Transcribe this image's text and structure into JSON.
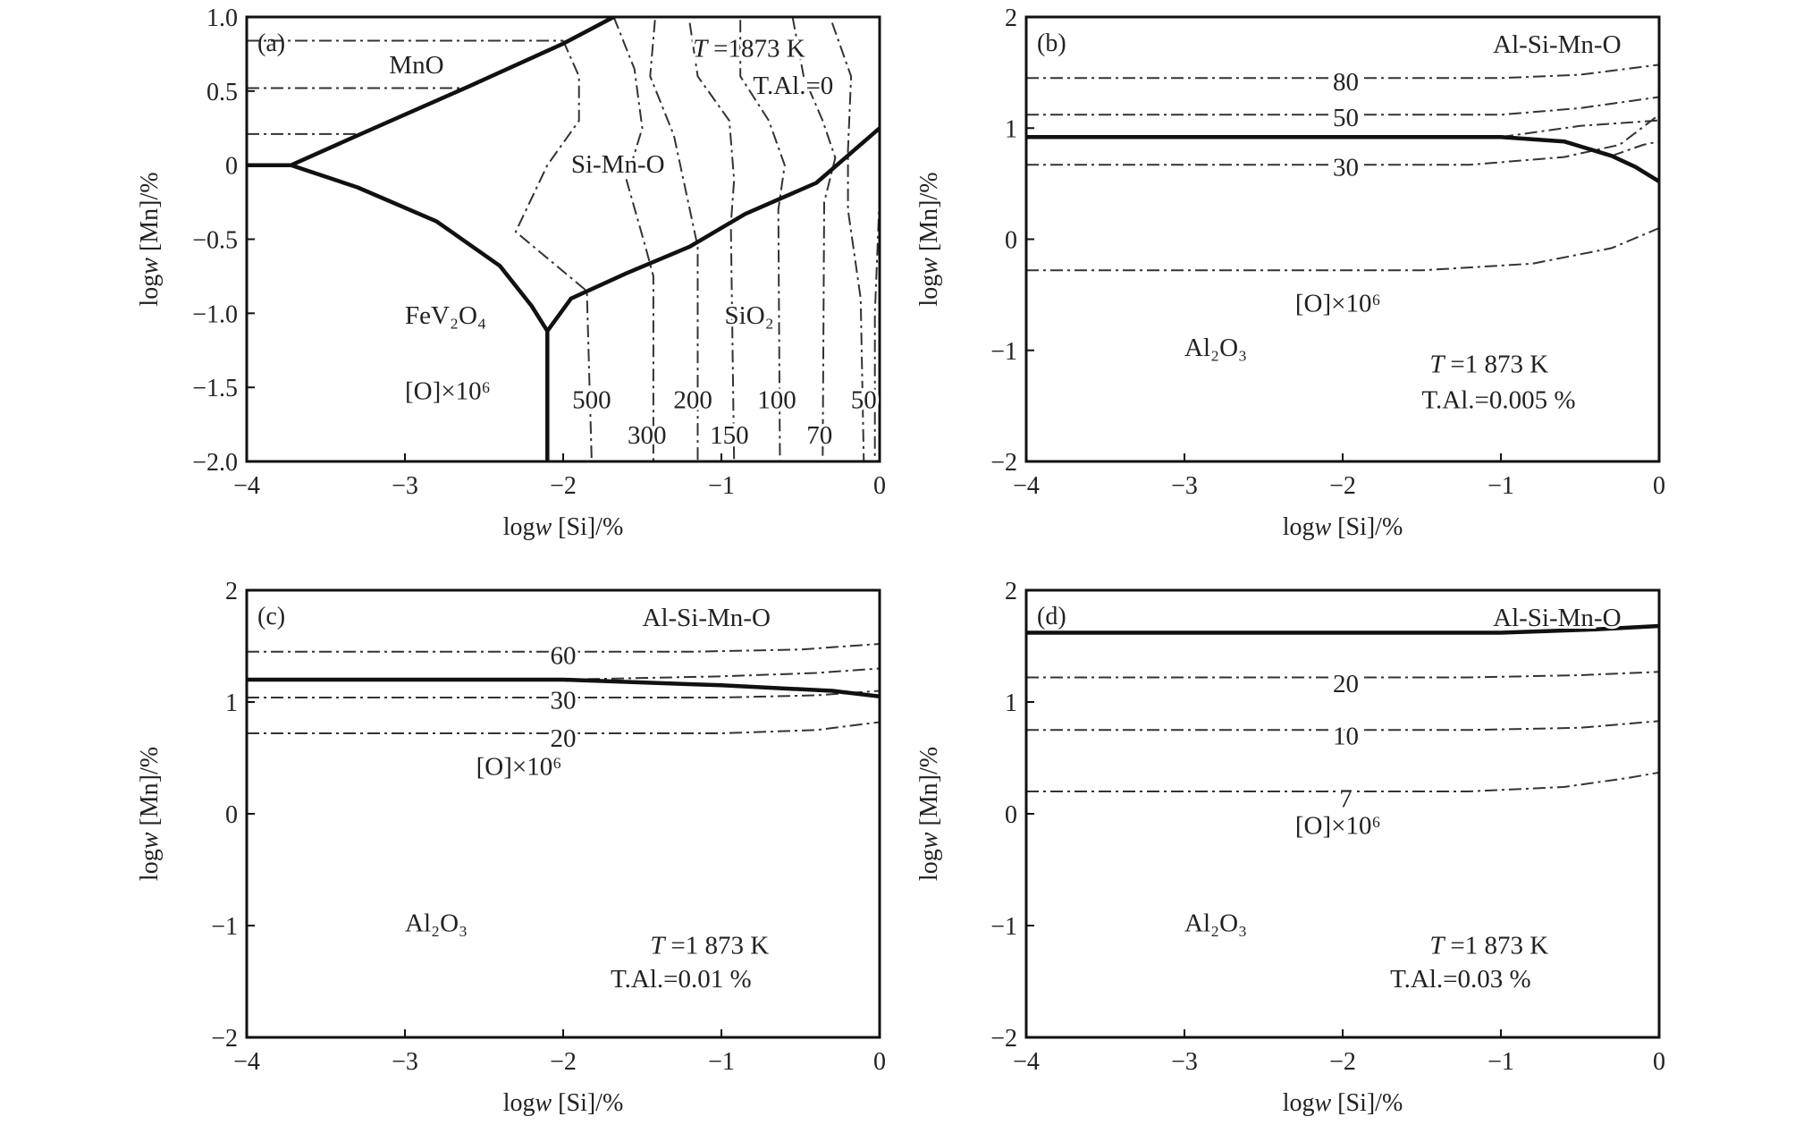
{
  "chart_data": [
    {
      "panel": "(a)",
      "type": "line",
      "xlabel_pre": "log",
      "xlabel_var": "w",
      "xlabel_post": " [Si]/%",
      "ylabel_pre": "log",
      "ylabel_var": "w",
      "ylabel_post": " [Mn]/%",
      "xlim": [
        -4,
        0
      ],
      "ylim": [
        -2.0,
        1.0
      ],
      "xticks": [
        -4,
        -3,
        -2,
        -1,
        0
      ],
      "xtick_labels": [
        "−4",
        "−3",
        "−2",
        "−1",
        "0"
      ],
      "yticks": [
        -2.0,
        -1.5,
        -1.0,
        -0.5,
        0,
        0.5,
        1.0
      ],
      "ytick_labels": [
        "−2.0",
        "−1.5",
        "−1.0",
        "−0.5",
        "0",
        "0.5",
        "1.0"
      ],
      "annotations": [
        {
          "text": "T",
          "italic": true,
          "x": -1.18,
          "y": 0.73
        },
        {
          "text": "=1873 K",
          "x": -1.05,
          "y": 0.73
        },
        {
          "text": "T.Al.=0",
          "x": -0.8,
          "y": 0.48
        },
        {
          "text": "MnO",
          "x": -3.1,
          "y": 0.62
        },
        {
          "text": "Si-Mn-O",
          "x": -1.95,
          "y": -0.05
        },
        {
          "text": "FeV₂O₄",
          "x": -3.0,
          "y": -1.07
        },
        {
          "text": "SiO₂",
          "x": -0.98,
          "y": -1.07
        },
        {
          "text": "[O]×10⁶",
          "x": -3.0,
          "y": -1.58
        }
      ],
      "contour_labels": [
        {
          "text": "500",
          "x": -1.82,
          "y": -1.58
        },
        {
          "text": "200",
          "x": -1.18,
          "y": -1.58
        },
        {
          "text": "100",
          "x": -0.65,
          "y": -1.58
        },
        {
          "text": "50",
          "x": -0.1,
          "y": -1.58
        },
        {
          "text": "300",
          "x": -1.47,
          "y": -1.82
        },
        {
          "text": "150",
          "x": -0.95,
          "y": -1.82
        },
        {
          "text": "70",
          "x": -0.38,
          "y": -1.82
        }
      ],
      "phase_boundaries": [
        {
          "name": "MnO / Si-Mn-O",
          "points": [
            [
              -3.72,
              0.0
            ],
            [
              -3.3,
              0.2
            ],
            [
              -2.6,
              0.53
            ],
            [
              -2.0,
              0.82
            ],
            [
              -1.68,
              1.0
            ]
          ]
        },
        {
          "name": "FeV2O4 / Si-Mn-O",
          "points": [
            [
              -3.72,
              0.0
            ],
            [
              -3.3,
              -0.15
            ],
            [
              -2.8,
              -0.38
            ],
            [
              -2.4,
              -0.68
            ],
            [
              -2.2,
              -0.95
            ],
            [
              -2.1,
              -1.12
            ]
          ]
        },
        {
          "name": "Si-Mn-O / SiO2",
          "points": [
            [
              -2.1,
              -1.12
            ],
            [
              -1.95,
              -0.9
            ],
            [
              -1.6,
              -0.73
            ],
            [
              -1.2,
              -0.55
            ],
            [
              -0.85,
              -0.33
            ],
            [
              -0.4,
              -0.12
            ],
            [
              0.0,
              0.25
            ]
          ]
        },
        {
          "name": "FeV2O4 / SiO2",
          "points": [
            [
              -2.1,
              -1.12
            ],
            [
              -2.1,
              -2.0
            ]
          ]
        },
        {
          "name": "FeV2O4 / MnO",
          "points": [
            [
              -4.0,
              0.0
            ],
            [
              -3.72,
              0.0
            ]
          ]
        }
      ],
      "iso_oxygen": [
        {
          "points": [
            [
              -4.0,
              0.84
            ],
            [
              -2.0,
              0.84
            ]
          ]
        },
        {
          "points": [
            [
              -4.0,
              0.52
            ],
            [
              -2.6,
              0.52
            ]
          ]
        },
        {
          "points": [
            [
              -4.0,
              0.21
            ],
            [
              -3.3,
              0.21
            ]
          ]
        },
        {
          "points": [
            [
              -2.0,
              0.84
            ],
            [
              -1.9,
              0.6
            ],
            [
              -1.9,
              0.3
            ],
            [
              -2.1,
              0.0
            ],
            [
              -2.3,
              -0.45
            ],
            [
              -1.85,
              -0.85
            ],
            [
              -1.82,
              -2.0
            ]
          ]
        },
        {
          "points": [
            [
              -1.68,
              1.0
            ],
            [
              -1.55,
              0.65
            ],
            [
              -1.5,
              0.25
            ],
            [
              -1.6,
              -0.1
            ],
            [
              -1.48,
              -0.55
            ],
            [
              -1.43,
              -0.75
            ],
            [
              -1.43,
              -2.0
            ]
          ]
        },
        {
          "points": [
            [
              -1.42,
              0.98
            ],
            [
              -1.45,
              0.6
            ],
            [
              -1.3,
              0.2
            ],
            [
              -1.22,
              -0.2
            ],
            [
              -1.15,
              -0.55
            ],
            [
              -1.15,
              -2.0
            ]
          ]
        },
        {
          "points": [
            [
              -1.2,
              0.96
            ],
            [
              -1.15,
              0.6
            ],
            [
              -0.95,
              0.3
            ],
            [
              -0.92,
              -0.1
            ],
            [
              -0.94,
              -0.4
            ],
            [
              -0.92,
              -2.0
            ]
          ]
        },
        {
          "points": [
            [
              -0.88,
              0.98
            ],
            [
              -0.88,
              0.6
            ],
            [
              -0.7,
              0.3
            ],
            [
              -0.6,
              0.0
            ],
            [
              -0.64,
              -0.3
            ],
            [
              -0.63,
              -2.0
            ]
          ]
        },
        {
          "points": [
            [
              -0.55,
              1.0
            ],
            [
              -0.48,
              0.6
            ],
            [
              -0.36,
              0.3
            ],
            [
              -0.28,
              0.05
            ],
            [
              -0.35,
              -0.25
            ],
            [
              -0.36,
              -2.0
            ]
          ]
        },
        {
          "points": [
            [
              -0.3,
              0.96
            ],
            [
              -0.18,
              0.6
            ],
            [
              -0.2,
              0.1
            ],
            [
              -0.2,
              -0.3
            ],
            [
              -0.12,
              -0.9
            ],
            [
              -0.1,
              -2.0
            ]
          ]
        },
        {
          "points": [
            [
              0.0,
              -0.2
            ],
            [
              -0.03,
              -1.0
            ],
            [
              -0.03,
              -2.0
            ]
          ]
        }
      ]
    },
    {
      "panel": "(b)",
      "type": "line",
      "xlabel_pre": "log",
      "xlabel_var": "w",
      "xlabel_post": " [Si]/%",
      "ylabel_pre": "log",
      "ylabel_var": "w",
      "ylabel_post": " [Mn]/%",
      "xlim": [
        -4,
        0
      ],
      "ylim": [
        -2,
        2
      ],
      "xticks": [
        -4,
        -3,
        -2,
        -1,
        0
      ],
      "xtick_labels": [
        "−4",
        "−3",
        "−2",
        "−1",
        "0"
      ],
      "yticks": [
        -2,
        -1,
        0,
        1,
        2
      ],
      "ytick_labels": [
        "−2",
        "−1",
        "0",
        "1",
        "2"
      ],
      "annotations": [
        {
          "text": "Al-Si-Mn-O",
          "x": -1.05,
          "y": 1.68
        },
        {
          "text": "[O]×10⁶",
          "x": -2.3,
          "y": -0.65
        },
        {
          "text": "Al₂O₃",
          "x": -3.0,
          "y": -1.05
        },
        {
          "text": "T",
          "italic": true,
          "x": -1.45,
          "y": -1.2
        },
        {
          "text": "=1 873 K",
          "x": -1.32,
          "y": -1.2
        },
        {
          "text": "T.Al.=0.005 %",
          "x": -1.5,
          "y": -1.52
        }
      ],
      "contour_labels": [
        {
          "text": "80",
          "x": -1.98,
          "y": 1.42
        },
        {
          "text": "50",
          "x": -1.98,
          "y": 1.1
        },
        {
          "text": "30",
          "x": -1.98,
          "y": 0.65
        }
      ],
      "phase_boundaries": [
        {
          "name": "Al2O3 / Al-Si-Mn-O",
          "points": [
            [
              -4.0,
              0.92
            ],
            [
              -1.0,
              0.92
            ],
            [
              -0.6,
              0.88
            ],
            [
              -0.3,
              0.75
            ],
            [
              -0.15,
              0.65
            ],
            [
              0.0,
              0.52
            ]
          ]
        }
      ],
      "iso_oxygen": [
        {
          "points": [
            [
              -4.0,
              1.45
            ],
            [
              -1.0,
              1.45
            ],
            [
              -0.5,
              1.48
            ],
            [
              0.0,
              1.57
            ]
          ]
        },
        {
          "points": [
            [
              -4.0,
              1.12
            ],
            [
              -1.0,
              1.12
            ],
            [
              -0.5,
              1.18
            ],
            [
              0.0,
              1.28
            ]
          ]
        },
        {
          "points": [
            [
              -4.0,
              0.67
            ],
            [
              -1.2,
              0.67
            ],
            [
              -0.6,
              0.74
            ],
            [
              -0.25,
              0.85
            ],
            [
              0.0,
              1.12
            ]
          ]
        },
        {
          "points": [
            [
              -4.0,
              -0.28
            ],
            [
              -1.5,
              -0.28
            ],
            [
              -0.8,
              -0.22
            ],
            [
              -0.3,
              -0.08
            ],
            [
              0.0,
              0.1
            ]
          ]
        },
        {
          "points": [
            [
              -1.0,
              0.92
            ],
            [
              -0.5,
              1.02
            ],
            [
              0.0,
              1.07
            ]
          ]
        },
        {
          "points": [
            [
              -0.3,
              0.75
            ],
            [
              -0.1,
              0.85
            ],
            [
              0.0,
              0.88
            ]
          ]
        }
      ]
    },
    {
      "panel": "(c)",
      "type": "line",
      "xlabel_pre": "log",
      "xlabel_var": "w",
      "xlabel_post": " [Si]/%",
      "ylabel_pre": "log",
      "ylabel_var": "w",
      "ylabel_post": " [Mn]/%",
      "xlim": [
        -4,
        0
      ],
      "ylim": [
        -2,
        2
      ],
      "xticks": [
        -4,
        -3,
        -2,
        -1,
        0
      ],
      "xtick_labels": [
        "−4",
        "−3",
        "−2",
        "−1",
        "0"
      ],
      "yticks": [
        -2,
        -1,
        0,
        1,
        2
      ],
      "ytick_labels": [
        "−2",
        "−1",
        "0",
        "1",
        "2"
      ],
      "annotations": [
        {
          "text": "Al-Si-Mn-O",
          "x": -1.5,
          "y": 1.68
        },
        {
          "text": "[O]×10⁶",
          "x": -2.55,
          "y": 0.35
        },
        {
          "text": "Al₂O₃",
          "x": -3.0,
          "y": -1.05
        },
        {
          "text": "T",
          "italic": true,
          "x": -1.45,
          "y": -1.25
        },
        {
          "text": "=1 873 K",
          "x": -1.32,
          "y": -1.25
        },
        {
          "text": "T.Al.=0.01 %",
          "x": -1.7,
          "y": -1.55
        }
      ],
      "contour_labels": [
        {
          "text": "60",
          "x": -2.0,
          "y": 1.42
        },
        {
          "text": "30",
          "x": -2.0,
          "y": 1.02
        },
        {
          "text": "20",
          "x": -2.0,
          "y": 0.68
        }
      ],
      "phase_boundaries": [
        {
          "name": "Al2O3 / Al-Si-Mn-O",
          "points": [
            [
              -4.0,
              1.2
            ],
            [
              -2.0,
              1.2
            ],
            [
              -1.0,
              1.15
            ],
            [
              -0.3,
              1.1
            ],
            [
              0.0,
              1.05
            ]
          ]
        }
      ],
      "iso_oxygen": [
        {
          "points": [
            [
              -4.0,
              1.45
            ],
            [
              -1.2,
              1.45
            ],
            [
              -0.5,
              1.47
            ],
            [
              0.0,
              1.52
            ]
          ]
        },
        {
          "points": [
            [
              -4.0,
              1.04
            ],
            [
              -1.0,
              1.04
            ],
            [
              -0.4,
              1.06
            ],
            [
              0.0,
              1.1
            ]
          ]
        },
        {
          "points": [
            [
              -4.0,
              0.72
            ],
            [
              -1.0,
              0.72
            ],
            [
              -0.4,
              0.75
            ],
            [
              0.0,
              0.82
            ]
          ]
        },
        {
          "points": [
            [
              -2.0,
              1.2
            ],
            [
              -1.0,
              1.23
            ],
            [
              -0.4,
              1.26
            ],
            [
              0.0,
              1.3
            ]
          ]
        },
        {
          "points": [
            [
              0.0,
              1.05
            ],
            [
              0.0,
              -2.0
            ]
          ]
        }
      ]
    },
    {
      "panel": "(d)",
      "type": "line",
      "xlabel_pre": "log",
      "xlabel_var": "w",
      "xlabel_post": " [Si]/%",
      "ylabel_pre": "log",
      "ylabel_var": "w",
      "ylabel_post": " [Mn]/%",
      "xlim": [
        -4,
        0
      ],
      "ylim": [
        -2,
        2
      ],
      "xticks": [
        -4,
        -3,
        -2,
        -1,
        0
      ],
      "xtick_labels": [
        "−4",
        "−3",
        "−2",
        "−1",
        "0"
      ],
      "yticks": [
        -2,
        -1,
        0,
        1,
        2
      ],
      "ytick_labels": [
        "−2",
        "−1",
        "0",
        "1",
        "2"
      ],
      "annotations": [
        {
          "text": "Al-Si-Mn-O",
          "x": -1.05,
          "y": 1.68
        },
        {
          "text": "[O]×10⁶",
          "x": -2.3,
          "y": -0.18
        },
        {
          "text": "Al₂O₃",
          "x": -3.0,
          "y": -1.05
        },
        {
          "text": "T",
          "italic": true,
          "x": -1.45,
          "y": -1.25
        },
        {
          "text": "=1 873 K",
          "x": -1.32,
          "y": -1.25
        },
        {
          "text": "T.Al.=0.03 %",
          "x": -1.7,
          "y": -1.55
        }
      ],
      "contour_labels": [
        {
          "text": "20",
          "x": -1.98,
          "y": 1.17
        },
        {
          "text": "10",
          "x": -1.98,
          "y": 0.7
        },
        {
          "text": "7",
          "x": -1.98,
          "y": 0.14
        }
      ],
      "phase_boundaries": [
        {
          "name": "Al2O3 / Al-Si-Mn-O",
          "points": [
            [
              -4.0,
              1.62
            ],
            [
              -1.0,
              1.62
            ],
            [
              -0.4,
              1.65
            ],
            [
              0.0,
              1.68
            ]
          ]
        }
      ],
      "iso_oxygen": [
        {
          "points": [
            [
              -4.0,
              1.22
            ],
            [
              -1.2,
              1.22
            ],
            [
              -0.5,
              1.24
            ],
            [
              0.0,
              1.27
            ]
          ]
        },
        {
          "points": [
            [
              -4.0,
              0.75
            ],
            [
              -1.2,
              0.75
            ],
            [
              -0.5,
              0.77
            ],
            [
              0.0,
              0.83
            ]
          ]
        },
        {
          "points": [
            [
              -4.0,
              0.2
            ],
            [
              -1.2,
              0.2
            ],
            [
              -0.6,
              0.24
            ],
            [
              -0.2,
              0.32
            ],
            [
              0.0,
              0.37
            ]
          ]
        }
      ]
    }
  ]
}
